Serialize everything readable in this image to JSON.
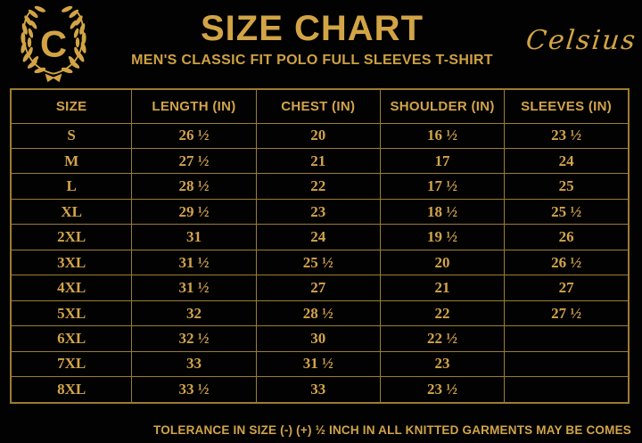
{
  "brand": {
    "name": "Celsius",
    "logo_letter": "C",
    "logo_icon": "laurel-wreath-icon"
  },
  "header": {
    "title": "SIZE CHART",
    "subtitle": "MEN'S CLASSIC FIT POLO FULL SLEEVES T-SHIRT"
  },
  "table": {
    "columns": [
      "SIZE",
      "LENGTH (IN)",
      "CHEST (IN)",
      "SHOULDER (IN)",
      "SLEEVES (IN)"
    ],
    "rows": [
      {
        "size": "S",
        "length": "26 ½",
        "chest": "20",
        "shoulder": "16 ½",
        "sleeves": "23 ½"
      },
      {
        "size": "M",
        "length": "27 ½",
        "chest": "21",
        "shoulder": "17",
        "sleeves": "24"
      },
      {
        "size": "L",
        "length": "28 ½",
        "chest": "22",
        "shoulder": "17 ½",
        "sleeves": "25"
      },
      {
        "size": "XL",
        "length": "29 ½",
        "chest": "23",
        "shoulder": "18 ½",
        "sleeves": "25 ½"
      },
      {
        "size": "2XL",
        "length": "31",
        "chest": "24",
        "shoulder": "19 ½",
        "sleeves": "26"
      },
      {
        "size": "3XL",
        "length": "31 ½",
        "chest": "25 ½",
        "shoulder": "20",
        "sleeves": "26 ½"
      },
      {
        "size": "4XL",
        "length": "31 ½",
        "chest": "27",
        "shoulder": "21",
        "sleeves": "27"
      },
      {
        "size": "5XL",
        "length": "32",
        "chest": "28 ½",
        "shoulder": "22",
        "sleeves": "27 ½"
      },
      {
        "size": "6XL",
        "length": "32 ½",
        "chest": "30",
        "shoulder": "22 ½",
        "sleeves": ""
      },
      {
        "size": "7XL",
        "length": "33",
        "chest": "31 ½",
        "shoulder": "23",
        "sleeves": ""
      },
      {
        "size": "8XL",
        "length": "33 ½",
        "chest": "33",
        "shoulder": "23 ½",
        "sleeves": ""
      }
    ]
  },
  "footer": {
    "note": "TOLERANCE IN SIZE (-) (+) ½ INCH IN ALL KNITTED GARMENTS MAY BE COMES"
  },
  "colors": {
    "background": "#020202",
    "gold_text": "#d2a44a",
    "title_gold": "#d2a445",
    "table_border": "#9c7c34"
  }
}
